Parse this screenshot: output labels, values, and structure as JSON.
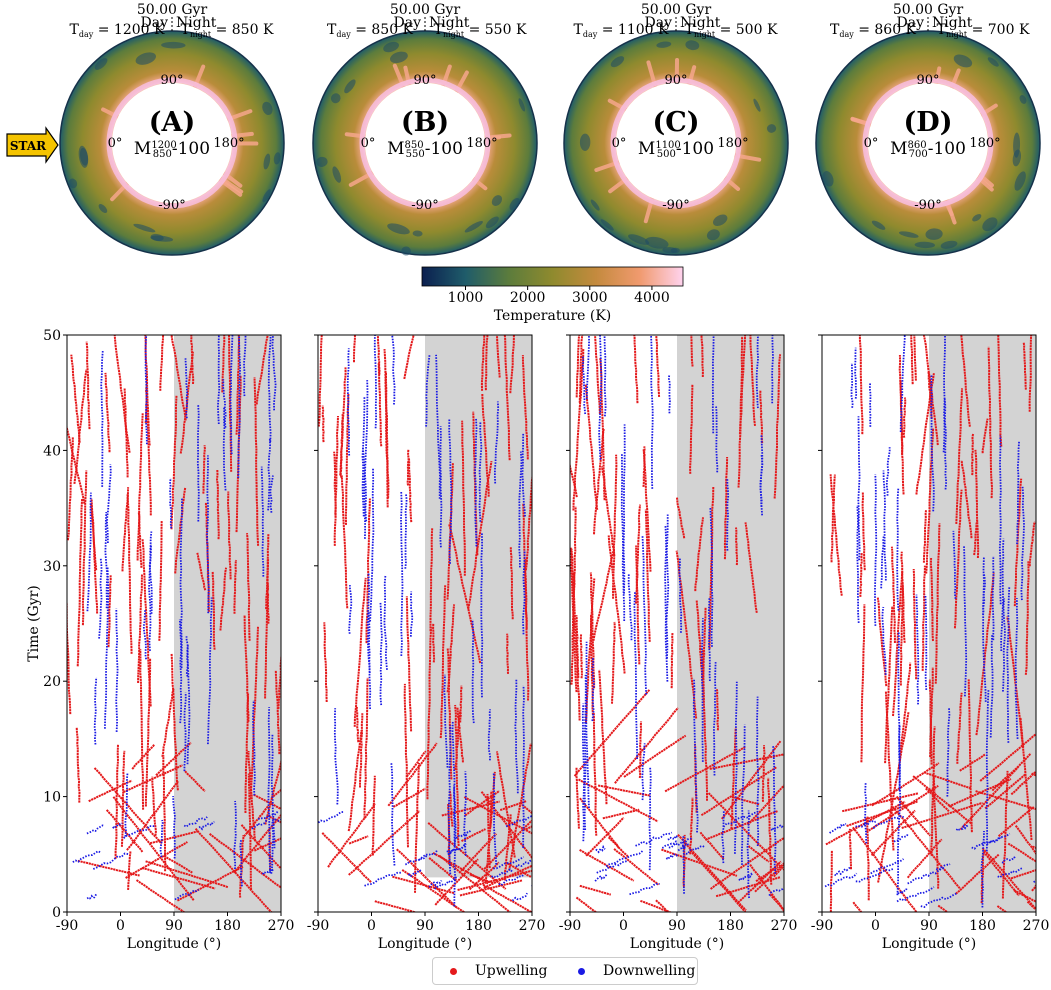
{
  "colorbar": {
    "label": "Temperature (K)",
    "ticks": [
      1000,
      2000,
      3000,
      4000
    ],
    "range": [
      300,
      4500
    ],
    "cmap": [
      "#0b1f4f",
      "#1f5c6a",
      "#5c7c3c",
      "#8f8a2e",
      "#c48a3e",
      "#f09a6e",
      "#ffd3ee"
    ]
  },
  "star_label": "STAR",
  "panels": [
    {
      "letter": "(A)",
      "time": "50.00 Gyr",
      "day": "Day",
      "night": "Night",
      "tday": "1200 K",
      "tnight": "850 K",
      "model_sup": "1200",
      "model_sub": "850"
    },
    {
      "letter": "(B)",
      "time": "50.00 Gyr",
      "day": "Day",
      "night": "Night",
      "tday": "850 K",
      "tnight": "550 K",
      "model_sup": "850",
      "model_sub": "550"
    },
    {
      "letter": "(C)",
      "time": "50.00 Gyr",
      "day": "Day",
      "night": "Night",
      "tday": "1100 K",
      "tnight": "500 K",
      "model_sup": "1100",
      "model_sub": "500"
    },
    {
      "letter": "(D)",
      "time": "50.00 Gyr",
      "day": "Day",
      "night": "Night",
      "tday": "860 K",
      "tnight": "700 K",
      "model_sup": "860",
      "model_sub": "700"
    }
  ],
  "ring_angle_labels": [
    "90°",
    "0°",
    "180°",
    "-90°"
  ],
  "chart_data": {
    "type": "scatter",
    "xlabel": "Longitude (°)",
    "ylabel": "Time (Gyr)",
    "xlim": [
      -90,
      270
    ],
    "ylim": [
      0,
      50
    ],
    "xticks": [
      -90,
      0,
      90,
      180,
      270
    ],
    "yticks": [
      0,
      10,
      20,
      30,
      40,
      50
    ],
    "night_shading": [
      90,
      270
    ],
    "series": [
      {
        "name": "Upwelling",
        "color": "#e41a1c"
      },
      {
        "name": "Downwelling",
        "color": "#1a1ae4"
      }
    ],
    "panels": [
      {
        "seed": 11,
        "night_start_time": 0
      },
      {
        "seed": 23,
        "night_start_time": 3
      },
      {
        "seed": 37,
        "night_start_time": 0
      },
      {
        "seed": 51,
        "night_start_time": 0
      }
    ]
  },
  "legend": {
    "upwelling": "Upwelling",
    "downwelling": "Downwelling"
  }
}
